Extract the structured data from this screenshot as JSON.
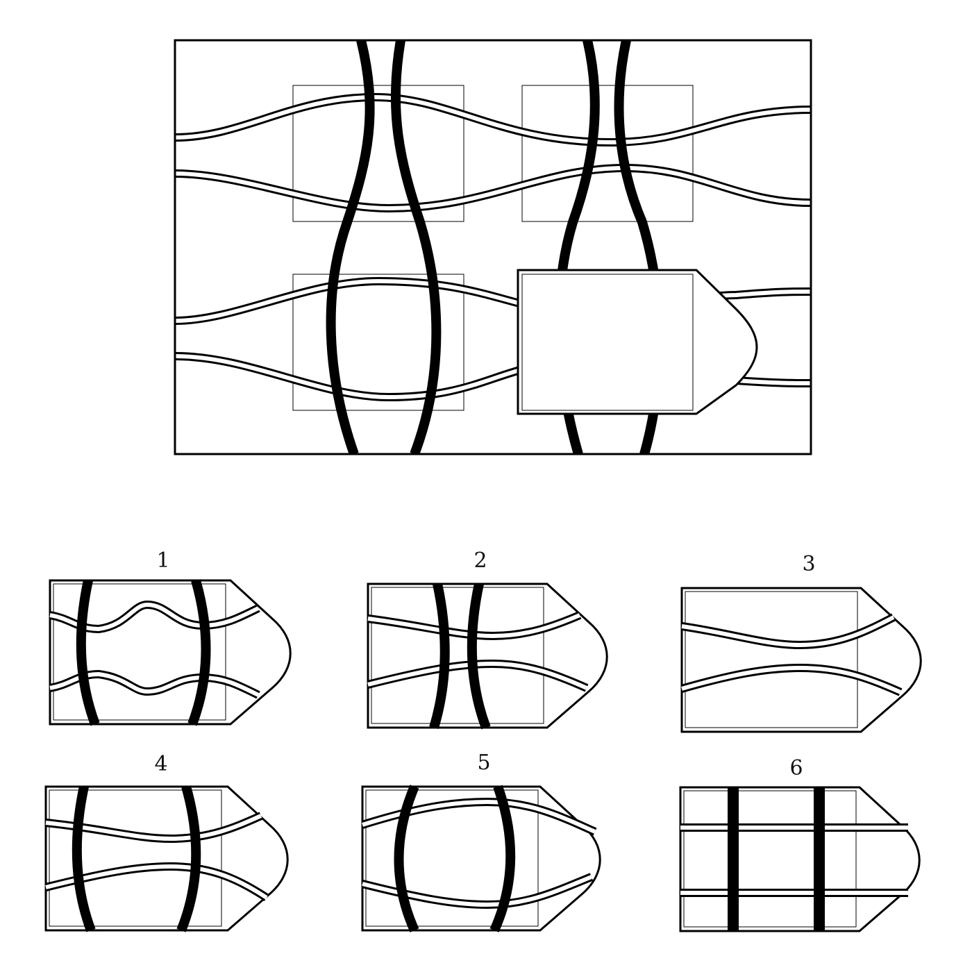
{
  "puzzle": {
    "type": "missing-piece",
    "options": [
      {
        "label": "1"
      },
      {
        "label": "2"
      },
      {
        "label": "3"
      },
      {
        "label": "4"
      },
      {
        "label": "5"
      },
      {
        "label": "6"
      }
    ]
  },
  "icons": [
    "piece-shape-icon"
  ]
}
